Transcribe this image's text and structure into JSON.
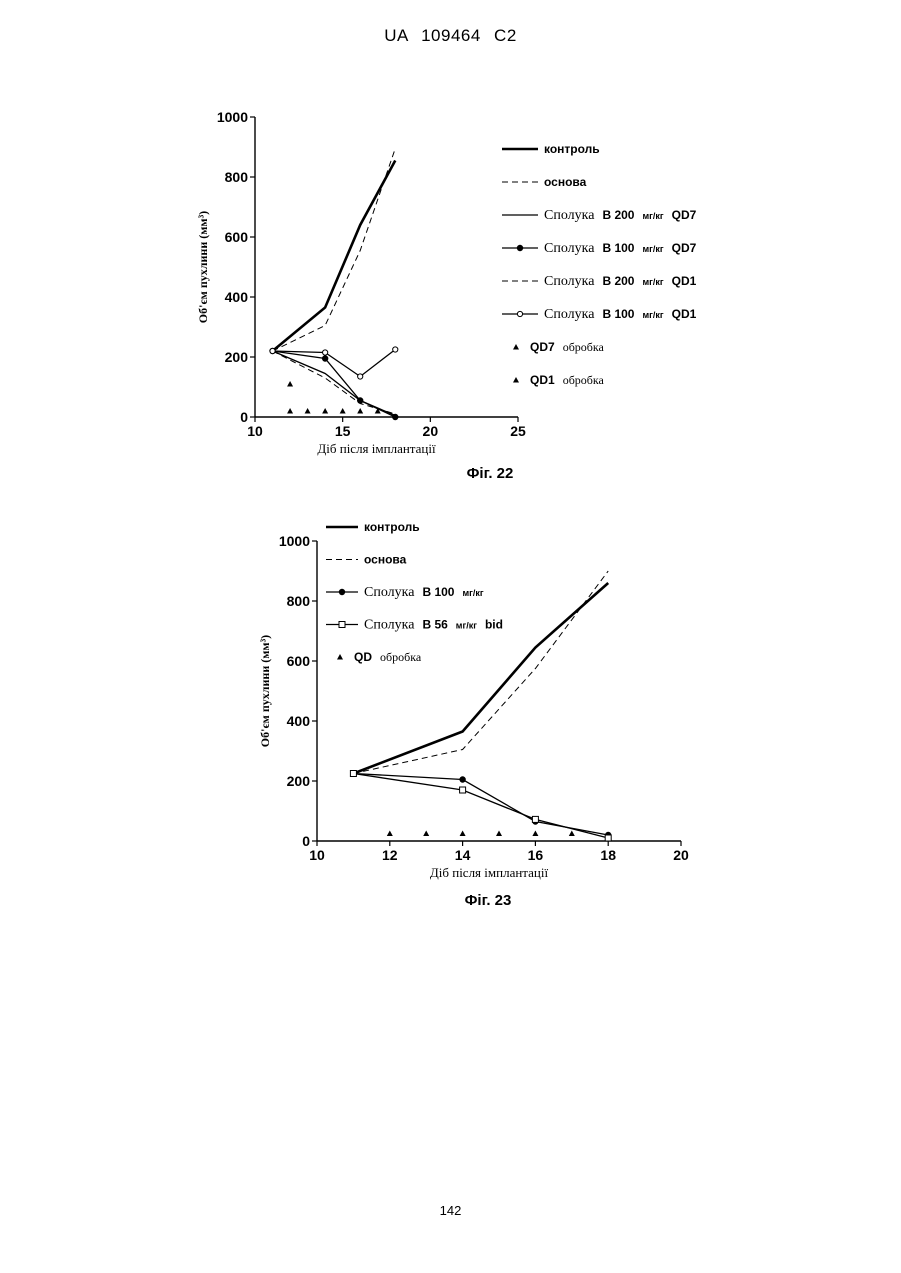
{
  "header": "UA 109464 C2",
  "page_number": "142",
  "chart_data": [
    {
      "type": "line",
      "caption": "Фіг. 22",
      "xlabel": "Діб після імплантації",
      "ylabel": "Об'єм пухлини (мм³)",
      "xlim": [
        10,
        25
      ],
      "ylim": [
        0,
        1000
      ],
      "xticks": [
        "10",
        "15",
        "20",
        "25"
      ],
      "yticks": [
        "0",
        "200",
        "400",
        "600",
        "800",
        "1000"
      ],
      "series": [
        {
          "name": "контроль",
          "style": "thick",
          "marker": "none",
          "x": [
            11,
            14,
            16,
            18
          ],
          "y": [
            220,
            365,
            640,
            855
          ]
        },
        {
          "name": "основа",
          "style": "dashed",
          "marker": "none",
          "x": [
            11,
            14,
            16,
            18
          ],
          "y": [
            220,
            305,
            555,
            895
          ]
        },
        {
          "name": "Сполука B 200 мг/кг QD7",
          "style": "thin",
          "marker": "none",
          "x": [
            11,
            14,
            16,
            18
          ],
          "y": [
            220,
            145,
            55,
            5
          ]
        },
        {
          "name": "Сполука B 100 мг/кг QD7",
          "style": "thin",
          "marker": "filled-circle",
          "x": [
            11,
            14,
            16,
            18
          ],
          "y": [
            220,
            195,
            55,
            0
          ]
        },
        {
          "name": "Сполука B 200 мг/кг QD1",
          "style": "dashed",
          "marker": "none",
          "x": [
            11,
            14,
            16,
            18
          ],
          "y": [
            220,
            130,
            45,
            10
          ]
        },
        {
          "name": "Сполука B 100 мг/кг QD1",
          "style": "thin",
          "marker": "open-circle",
          "x": [
            11,
            14,
            16,
            18
          ],
          "y": [
            220,
            215,
            135,
            225
          ]
        }
      ],
      "treatments": [
        {
          "name": "QD7 обробка",
          "x": [
            12
          ],
          "y": [
            110
          ]
        },
        {
          "name": "QD1 обробка",
          "x": [
            12,
            13,
            14,
            15,
            16,
            17
          ],
          "y": [
            20,
            20,
            20,
            20,
            20,
            20
          ]
        }
      ],
      "legend": [
        {
          "parts": [
            {
              "t": "контроль",
              "f": "sans"
            }
          ],
          "line": "thick",
          "marker": "none"
        },
        {
          "parts": [
            {
              "t": "основа",
              "f": "sans"
            }
          ],
          "line": "dashed",
          "marker": "none"
        },
        {
          "parts": [
            {
              "t": "Сполука",
              "f": "serif"
            },
            {
              "t": "B 200",
              "f": "sans"
            },
            {
              "t": "мг/кг",
              "f": "small"
            },
            {
              "t": "QD7",
              "f": "sans"
            }
          ],
          "line": "thin",
          "marker": "none"
        },
        {
          "parts": [
            {
              "t": "Сполука",
              "f": "serif"
            },
            {
              "t": "B 100",
              "f": "sans"
            },
            {
              "t": "мг/кг",
              "f": "small"
            },
            {
              "t": "QD7",
              "f": "sans"
            }
          ],
          "line": "thin",
          "marker": "filled-circle"
        },
        {
          "parts": [
            {
              "t": "Сполука",
              "f": "serif"
            },
            {
              "t": "B 200",
              "f": "sans"
            },
            {
              "t": "мг/кг",
              "f": "small"
            },
            {
              "t": "QD1",
              "f": "sans"
            }
          ],
          "line": "dashed",
          "marker": "none"
        },
        {
          "parts": [
            {
              "t": "Сполука",
              "f": "serif"
            },
            {
              "t": "B 100",
              "f": "sans"
            },
            {
              "t": "мг/кг",
              "f": "small"
            },
            {
              "t": "QD1",
              "f": "sans"
            }
          ],
          "line": "thin",
          "marker": "open-circle"
        },
        {
          "parts": [
            {
              "t": "QD7",
              "f": "sans"
            },
            {
              "t": "обробка",
              "f": "tiny"
            }
          ],
          "line": "none",
          "marker": "triangle"
        },
        {
          "parts": [
            {
              "t": "QD1",
              "f": "sans"
            },
            {
              "t": "обробка",
              "f": "tiny"
            }
          ],
          "line": "none",
          "marker": "triangle"
        }
      ]
    },
    {
      "type": "line",
      "caption": "Фіг. 23",
      "xlabel": "Діб після імплантації",
      "ylabel": "Об'єм пухлини (мм³)",
      "xlim": [
        10,
        20
      ],
      "ylim": [
        0,
        1000
      ],
      "xticks": [
        "10",
        "12",
        "14",
        "16",
        "18",
        "20"
      ],
      "yticks": [
        "0",
        "200",
        "400",
        "600",
        "800",
        "1000"
      ],
      "series": [
        {
          "name": "контроль",
          "style": "thick",
          "marker": "none",
          "x": [
            11,
            14,
            16,
            18
          ],
          "y": [
            225,
            365,
            645,
            860
          ]
        },
        {
          "name": "основа",
          "style": "dashed",
          "marker": "none",
          "x": [
            11,
            14,
            16,
            18
          ],
          "y": [
            225,
            305,
            575,
            900
          ]
        },
        {
          "name": "Сполука B 100 мг/кг",
          "style": "thin",
          "marker": "filled-circle",
          "x": [
            11,
            14,
            16,
            18
          ],
          "y": [
            225,
            205,
            65,
            20
          ]
        },
        {
          "name": "Сполука B 56 мг/кг bid",
          "style": "thin",
          "marker": "open-square",
          "x": [
            11,
            14,
            16,
            18
          ],
          "y": [
            225,
            170,
            72,
            10
          ]
        }
      ],
      "treatments": [
        {
          "name": "QD обробка",
          "x": [
            12,
            13,
            14,
            15,
            16,
            17
          ],
          "y": [
            25,
            25,
            25,
            25,
            25,
            25
          ]
        }
      ],
      "legend": [
        {
          "parts": [
            {
              "t": "контроль",
              "f": "sans"
            }
          ],
          "line": "thick",
          "marker": "none"
        },
        {
          "parts": [
            {
              "t": "основа",
              "f": "sans"
            }
          ],
          "line": "dashed",
          "marker": "none"
        },
        {
          "parts": [
            {
              "t": "Сполука",
              "f": "serif"
            },
            {
              "t": "B 100",
              "f": "sans"
            },
            {
              "t": "мг/кг",
              "f": "small"
            }
          ],
          "line": "thin",
          "marker": "filled-circle"
        },
        {
          "parts": [
            {
              "t": "Сполука",
              "f": "serif"
            },
            {
              "t": "B 56",
              "f": "sans"
            },
            {
              "t": "мг/кг",
              "f": "small"
            },
            {
              "t": "bid",
              "f": "sans"
            }
          ],
          "line": "thin",
          "marker": "open-square"
        },
        {
          "parts": [
            {
              "t": "QD",
              "f": "sans"
            },
            {
              "t": "обробка",
              "f": "tiny"
            }
          ],
          "line": "none",
          "marker": "triangle"
        }
      ]
    }
  ]
}
